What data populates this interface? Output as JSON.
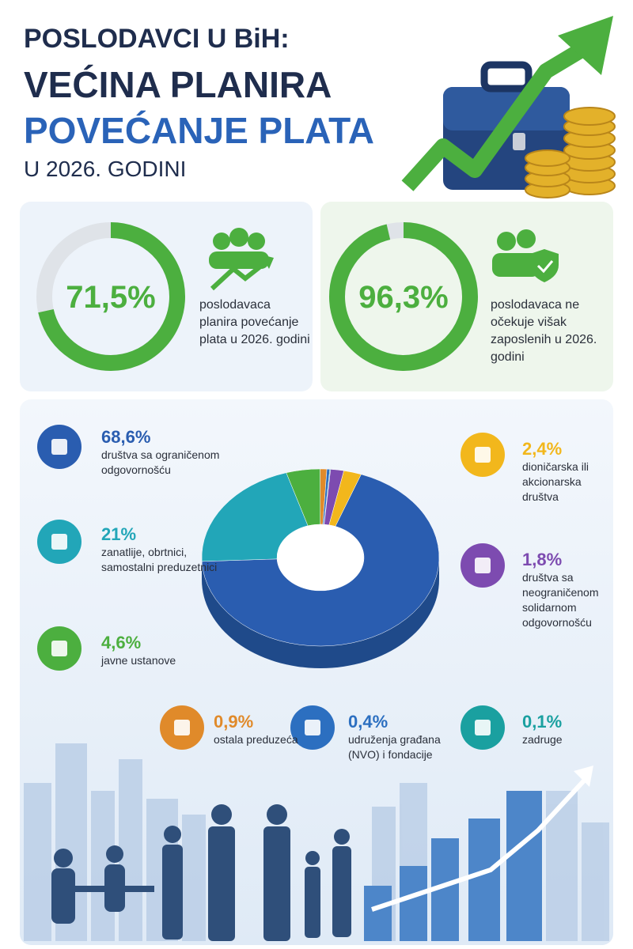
{
  "header": {
    "line1": "POSLODAVCI U BiH:",
    "line2": "VEĆINA PLANIRA",
    "line3": "POVEĆANJE PLATA",
    "line4": "U 2026. GODINI"
  },
  "chart_data": [
    {
      "type": "gauge",
      "values": [
        71.5
      ],
      "value_labels": [
        "71,5%"
      ],
      "ylim": [
        0,
        100
      ],
      "color": "#4caf3f",
      "caption": "poslodavaca planira povećanje plata u 2026. godini"
    },
    {
      "type": "gauge",
      "values": [
        96.3
      ],
      "value_labels": [
        "96,3%"
      ],
      "ylim": [
        0,
        100
      ],
      "color": "#4caf3f",
      "caption": "poslodavaca ne očekuje višak zaposlenih u 2026. godini"
    },
    {
      "type": "pie",
      "categories": [
        "društva sa ograničenom odgovornošću",
        "zanatlije, obrtnici, samostalni preduzetnici",
        "javne ustanove",
        "ostala preduzeća",
        "udruženja građana (NVO) i fondacije",
        "zadruge",
        "društva sa neograničenom solidarnom odgovornošću",
        "dioničarska ili akcionarska društva"
      ],
      "values": [
        68.6,
        21,
        4.6,
        0.9,
        0.4,
        0.1,
        1.8,
        2.4
      ],
      "value_labels": [
        "68,6%",
        "21%",
        "4,6%",
        "0,9%",
        "0,4%",
        "0,1%",
        "1,8%",
        "2,4%"
      ],
      "colors": [
        "#2a5db0",
        "#22a6b8",
        "#4caf3f",
        "#e08a2a",
        "#2c6fc0",
        "#1aa0a0",
        "#7d4bb0",
        "#f2b71c"
      ]
    }
  ]
}
